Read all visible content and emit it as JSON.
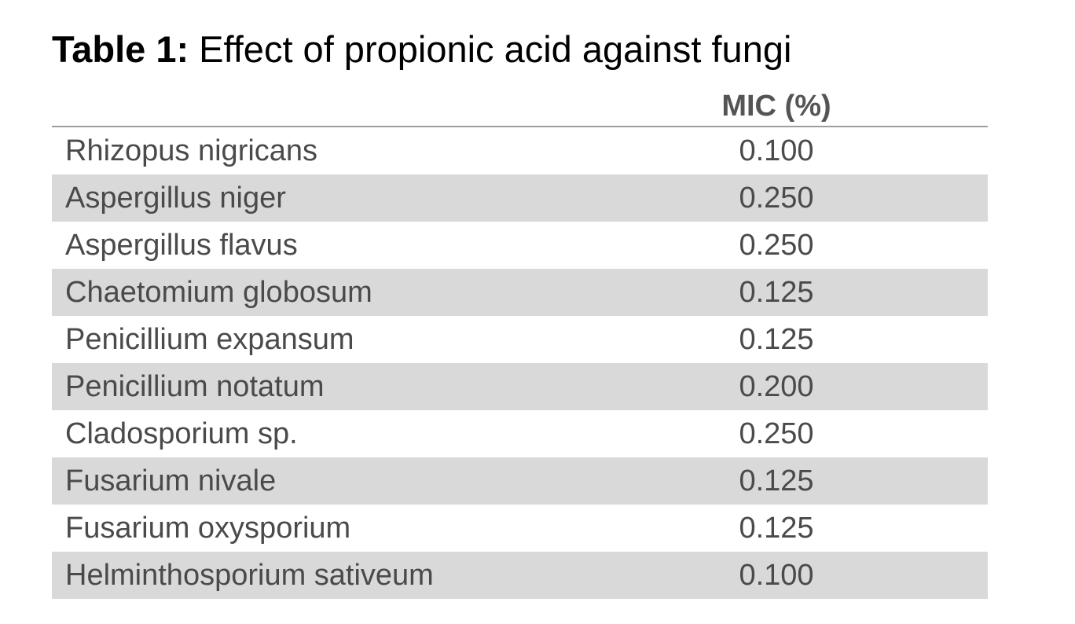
{
  "title": {
    "label": "Table 1:",
    "text": " Effect of propionic acid against fungi"
  },
  "table": {
    "header": "MIC (%)",
    "rows": [
      {
        "organism": "Rhizopus nigricans",
        "mic": "0.100"
      },
      {
        "organism": "Aspergillus niger",
        "mic": "0.250"
      },
      {
        "organism": "Aspergillus flavus",
        "mic": "0.250"
      },
      {
        "organism": "Chaetomium globosum",
        "mic": "0.125"
      },
      {
        "organism": "Penicillium expansum",
        "mic": "0.125"
      },
      {
        "organism": "Penicillium notatum",
        "mic": "0.200"
      },
      {
        "organism": "Cladosporium sp.",
        "mic": "0.250"
      },
      {
        "organism": "Fusarium nivale",
        "mic": "0.125"
      },
      {
        "organism": "Fusarium oxysporium",
        "mic": "0.125"
      },
      {
        "organism": "Helminthosporium sativeum",
        "mic": "0.100"
      }
    ]
  },
  "colors": {
    "shaded_row": "#d9d9d9",
    "text": "#4a4a4a",
    "header_rule": "#9e9e9e"
  }
}
